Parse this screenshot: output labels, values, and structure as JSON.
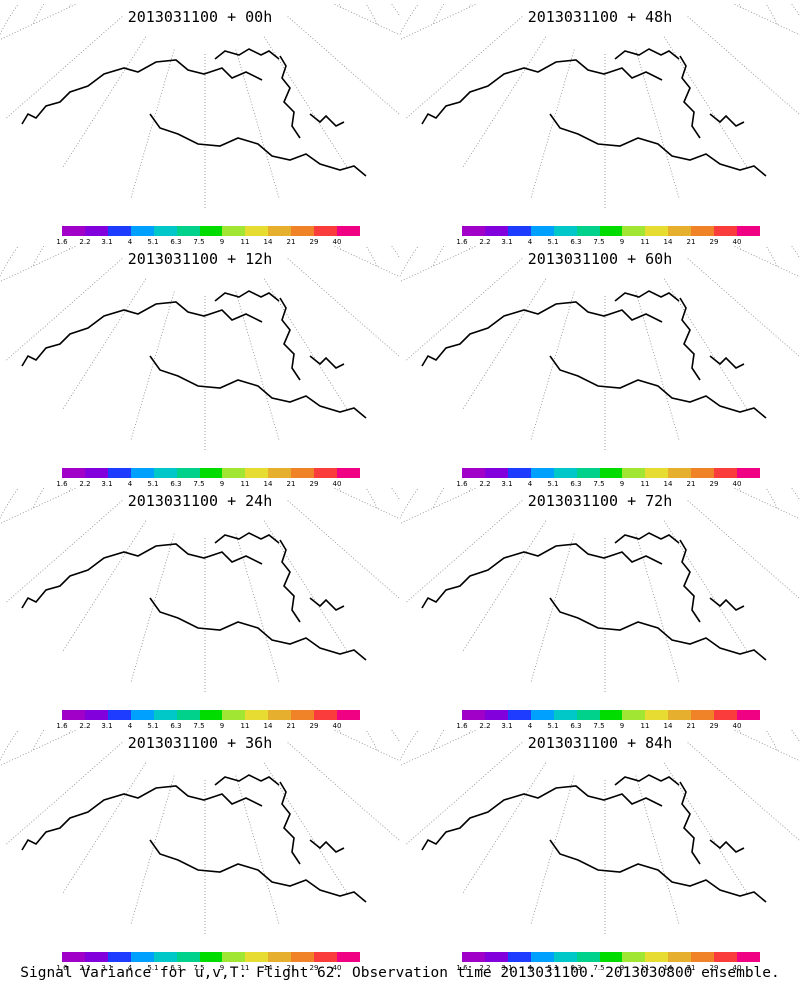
{
  "panels": [
    {
      "title": "2013031100 + 00h",
      "level": 0
    },
    {
      "title": "2013031100 + 48h",
      "level": 4
    },
    {
      "title": "2013031100 + 12h",
      "level": 1
    },
    {
      "title": "2013031100 + 60h",
      "level": 5
    },
    {
      "title": "2013031100 + 24h",
      "level": 2
    },
    {
      "title": "2013031100 + 72h",
      "level": 6
    },
    {
      "title": "2013031100 + 36h",
      "level": 3
    },
    {
      "title": "2013031100 + 84h",
      "level": 7
    }
  ],
  "colorbar": {
    "labels": [
      "1.6",
      "2.2",
      "3.1",
      "4",
      "5.1",
      "6.3",
      "7.5",
      "9",
      "11",
      "14",
      "21",
      "29",
      "40"
    ],
    "colors": [
      "#a000c8",
      "#8200dc",
      "#1e3cff",
      "#00a0ff",
      "#00c8c8",
      "#00d28c",
      "#00dc00",
      "#a0e632",
      "#e6dc32",
      "#e6af2d",
      "#f08228",
      "#fa3c3c",
      "#f00082"
    ]
  },
  "footer": "Signal Variance for u,v,T. Flight 62. Observation time 2013031100. 2013030800 ensemble.",
  "colors": {
    "coast": "#000000",
    "grid": "#888888"
  }
}
